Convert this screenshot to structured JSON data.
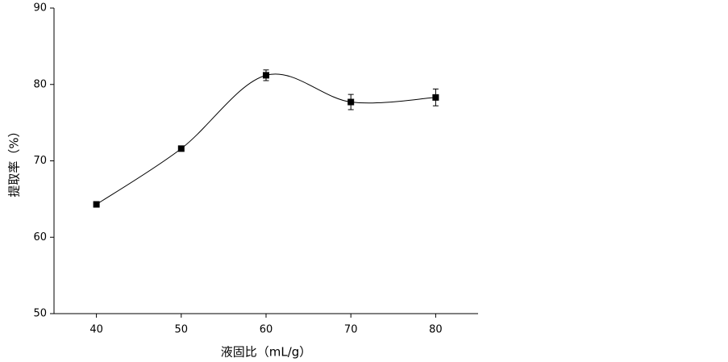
{
  "chart_data": {
    "type": "line",
    "x_label": "液固比（mL/g）",
    "y_label": "提取率（%）",
    "x": [
      40,
      50,
      60,
      70,
      80
    ],
    "series": [
      {
        "color": "#000000",
        "values": [
          64.3,
          71.6,
          81.2,
          77.7,
          78.3
        ],
        "errors": [
          0.2,
          0.2,
          0.7,
          1.0,
          1.1
        ]
      }
    ],
    "xlim": [
      35,
      85
    ],
    "xticks": [
      40,
      50,
      60,
      70,
      80
    ],
    "ylim": [
      50,
      90
    ],
    "yticks": [
      50,
      60,
      70,
      80,
      90
    ],
    "smooth": true,
    "grid": false
  }
}
